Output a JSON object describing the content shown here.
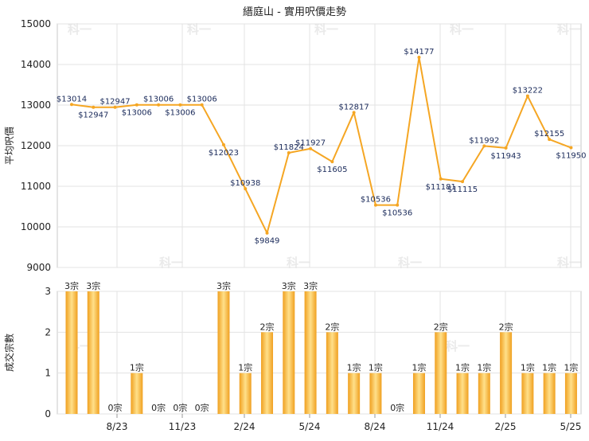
{
  "chart_data": {
    "title": "縉庭山 - 實用呎價走勢",
    "watermark": "科一",
    "x_ticks": [
      "8/23",
      "11/23",
      "2/24",
      "5/24",
      "8/24",
      "11/24",
      "2/25",
      "5/25"
    ],
    "price_chart": {
      "type": "line",
      "ylabel": "平均呎價",
      "ylim": [
        9000,
        15000
      ],
      "y_ticks": [
        "9000",
        "10000",
        "11000",
        "12000",
        "13000",
        "14000",
        "15000"
      ],
      "line_color": "#f5a623",
      "points": [
        {
          "i": 0,
          "value": 13014,
          "label": "$13014"
        },
        {
          "i": 1,
          "value": 12947,
          "label": "$12947"
        },
        {
          "i": 2,
          "value": 12947,
          "label": "$12947"
        },
        {
          "i": 3,
          "value": 13006,
          "label": "$13006"
        },
        {
          "i": 4,
          "value": 13006,
          "label": "$13006"
        },
        {
          "i": 5,
          "value": 13006,
          "label": "$13006"
        },
        {
          "i": 6,
          "value": 13006,
          "label": "$13006"
        },
        {
          "i": 7,
          "value": 12023,
          "label": "$12023"
        },
        {
          "i": 8,
          "value": 10938,
          "label": "$10938"
        },
        {
          "i": 9,
          "value": 9849,
          "label": "$9849"
        },
        {
          "i": 10,
          "value": 11824,
          "label": "$11824"
        },
        {
          "i": 11,
          "value": 11927,
          "label": "$11927"
        },
        {
          "i": 12,
          "value": 11605,
          "label": "$11605"
        },
        {
          "i": 13,
          "value": 12817,
          "label": "$12817"
        },
        {
          "i": 14,
          "value": 10536,
          "label": "$10536"
        },
        {
          "i": 15,
          "value": 10536,
          "label": "$10536"
        },
        {
          "i": 16,
          "value": 14177,
          "label": "$14177"
        },
        {
          "i": 17,
          "value": 11181,
          "label": "$11181"
        },
        {
          "i": 18,
          "value": 11115,
          "label": "$11115"
        },
        {
          "i": 19,
          "value": 11992,
          "label": "$11992"
        },
        {
          "i": 20,
          "value": 11943,
          "label": "$11943"
        },
        {
          "i": 21,
          "value": 13222,
          "label": "$13222"
        },
        {
          "i": 22,
          "value": 12155,
          "label": "$12155"
        },
        {
          "i": 23,
          "value": 11950,
          "label": "$11950"
        }
      ]
    },
    "volume_chart": {
      "type": "bar",
      "ylabel": "成交宗數",
      "ylim": [
        0,
        3
      ],
      "y_ticks": [
        "0",
        "1",
        "2",
        "3"
      ],
      "bar_color": "#f5a623",
      "values": [
        3,
        3,
        0,
        1,
        0,
        0,
        0,
        3,
        1,
        2,
        3,
        3,
        2,
        1,
        1,
        0,
        1,
        2,
        1,
        1,
        2,
        1,
        1,
        1
      ],
      "labels": [
        "3宗",
        "3宗",
        "0宗",
        "1宗",
        "0宗",
        "0宗",
        "0宗",
        "3宗",
        "1宗",
        "2宗",
        "3宗",
        "3宗",
        "2宗",
        "1宗",
        "1宗",
        "0宗",
        "1宗",
        "2宗",
        "1宗",
        "1宗",
        "2宗",
        "1宗",
        "1宗",
        "1宗"
      ]
    }
  }
}
